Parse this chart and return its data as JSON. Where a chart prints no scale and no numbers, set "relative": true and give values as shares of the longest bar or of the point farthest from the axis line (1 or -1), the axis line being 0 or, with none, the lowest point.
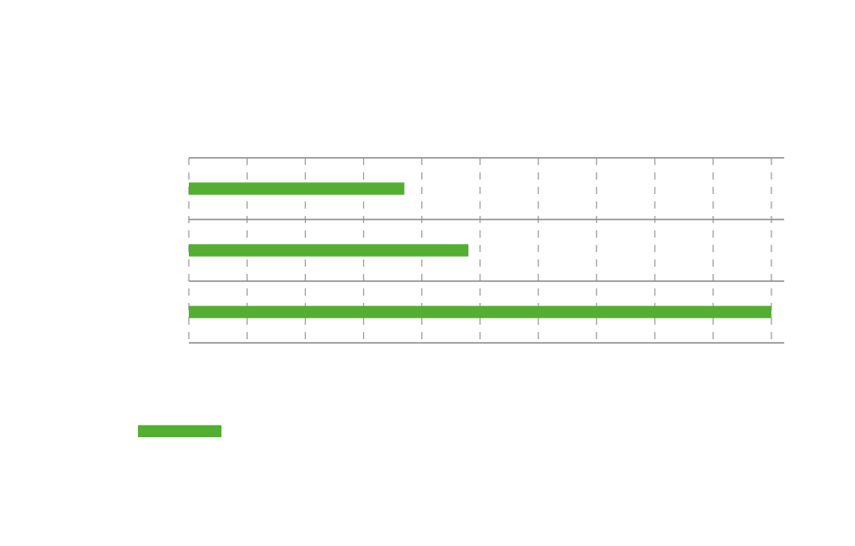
{
  "chart_data": {
    "type": "bar",
    "orientation": "horizontal",
    "relative": true,
    "categories": [
      null,
      null,
      null
    ],
    "values": [
      0.37,
      0.48,
      1
    ],
    "color": "#53ae32",
    "grid": "x"
  }
}
